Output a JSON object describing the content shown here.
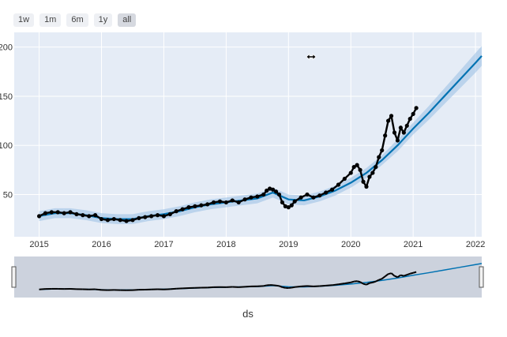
{
  "range_selector": {
    "buttons": [
      {
        "label": "1w"
      },
      {
        "label": "1m"
      },
      {
        "label": "6m"
      },
      {
        "label": "1y"
      },
      {
        "label": "all",
        "active": true
      }
    ]
  },
  "colors": {
    "plot_bg": "#e5ecf6",
    "grid": "#ffffff",
    "forecast": "#0072b2",
    "uncertainty": "#9ec3e6",
    "points": "#000000",
    "rangeslider_bg": "#ccd2dd",
    "rangeslider_mask": "#e6e6ea"
  },
  "chart_data": {
    "type": "line",
    "title": "",
    "xlabel": "ds",
    "ylabel": "",
    "xlim": [
      2014.6,
      2022.1
    ],
    "ylim": [
      7,
      215
    ],
    "x_ticks": [
      "2015",
      "2016",
      "2017",
      "2018",
      "2019",
      "2020",
      "2021",
      "2022"
    ],
    "y_ticks": [
      "50",
      "100",
      "150",
      "200"
    ],
    "grid": true,
    "rangeslider": true,
    "series": [
      {
        "role": "observed",
        "style": "markers",
        "x": [
          2015.0,
          2015.1,
          2015.2,
          2015.3,
          2015.4,
          2015.5,
          2015.6,
          2015.7,
          2015.8,
          2015.9,
          2016.0,
          2016.1,
          2016.2,
          2016.3,
          2016.4,
          2016.5,
          2016.6,
          2016.7,
          2016.8,
          2016.9,
          2017.0,
          2017.1,
          2017.2,
          2017.3,
          2017.4,
          2017.5,
          2017.6,
          2017.7,
          2017.8,
          2017.9,
          2018.0,
          2018.1,
          2018.2,
          2018.3,
          2018.4,
          2018.5,
          2018.6,
          2018.65,
          2018.7,
          2018.75,
          2018.8,
          2018.85,
          2018.9,
          2018.95,
          2019.0,
          2019.05,
          2019.1,
          2019.2,
          2019.3,
          2019.4,
          2019.5,
          2019.6,
          2019.7,
          2019.8,
          2019.9,
          2020.0,
          2020.05,
          2020.1,
          2020.15,
          2020.2,
          2020.25,
          2020.3,
          2020.35,
          2020.4,
          2020.45,
          2020.5,
          2020.55,
          2020.6,
          2020.65,
          2020.7,
          2020.75,
          2020.8,
          2020.85,
          2020.9,
          2020.95,
          2021.0,
          2021.05
        ],
        "y": [
          28,
          31,
          32,
          32,
          31,
          32,
          30,
          29,
          28,
          29,
          25,
          24,
          25,
          24,
          23,
          24,
          26,
          27,
          28,
          29,
          28,
          30,
          33,
          35,
          37,
          38,
          39,
          40,
          42,
          43,
          42,
          44,
          42,
          45,
          47,
          48,
          50,
          54,
          56,
          55,
          53,
          50,
          42,
          38,
          37,
          39,
          43,
          47,
          50,
          47,
          49,
          52,
          55,
          60,
          66,
          72,
          78,
          80,
          75,
          63,
          58,
          68,
          72,
          78,
          88,
          95,
          110,
          125,
          130,
          113,
          105,
          118,
          113,
          120,
          127,
          132,
          138
        ]
      },
      {
        "role": "forecast",
        "style": "line",
        "x": [
          2015.0,
          2015.25,
          2015.5,
          2015.75,
          2016.0,
          2016.25,
          2016.5,
          2016.75,
          2017.0,
          2017.25,
          2017.5,
          2017.75,
          2018.0,
          2018.25,
          2018.5,
          2018.75,
          2019.0,
          2019.25,
          2019.5,
          2019.75,
          2020.0,
          2020.25,
          2020.5,
          2020.75,
          2021.0,
          2021.25,
          2021.5,
          2021.75,
          2022.0,
          2022.1
        ],
        "y": [
          28,
          31,
          31,
          29,
          26,
          25,
          25,
          28,
          30,
          33,
          37,
          40,
          42,
          44,
          46,
          52,
          45,
          44,
          48,
          54,
          62,
          72,
          85,
          100,
          117,
          133,
          150,
          167,
          184,
          191
        ]
      },
      {
        "role": "uncertainty_upper",
        "style": "band",
        "x": [
          2015.0,
          2015.25,
          2015.5,
          2015.75,
          2016.0,
          2016.25,
          2016.5,
          2016.75,
          2017.0,
          2017.25,
          2017.5,
          2017.75,
          2018.0,
          2018.25,
          2018.5,
          2018.75,
          2019.0,
          2019.25,
          2019.5,
          2019.75,
          2020.0,
          2020.25,
          2020.5,
          2020.75,
          2021.0,
          2021.25,
          2021.5,
          2021.75,
          2022.0,
          2022.1
        ],
        "y": [
          33,
          36,
          36,
          34,
          31,
          30,
          30,
          33,
          35,
          38,
          42,
          45,
          47,
          49,
          51,
          57,
          50,
          49,
          53,
          59,
          67,
          77,
          90,
          106,
          123,
          140,
          158,
          176,
          194,
          201
        ]
      },
      {
        "role": "uncertainty_lower",
        "style": "band",
        "x": [
          2015.0,
          2015.25,
          2015.5,
          2015.75,
          2016.0,
          2016.25,
          2016.5,
          2016.75,
          2017.0,
          2017.25,
          2017.5,
          2017.75,
          2018.0,
          2018.25,
          2018.5,
          2018.75,
          2019.0,
          2019.25,
          2019.5,
          2019.75,
          2020.0,
          2020.25,
          2020.5,
          2020.75,
          2021.0,
          2021.25,
          2021.5,
          2021.75,
          2022.0,
          2022.1
        ],
        "y": [
          23,
          26,
          26,
          24,
          21,
          20,
          20,
          23,
          25,
          28,
          32,
          35,
          37,
          39,
          41,
          47,
          40,
          39,
          43,
          49,
          57,
          67,
          80,
          94,
          111,
          126,
          142,
          158,
          174,
          181
        ]
      }
    ]
  }
}
